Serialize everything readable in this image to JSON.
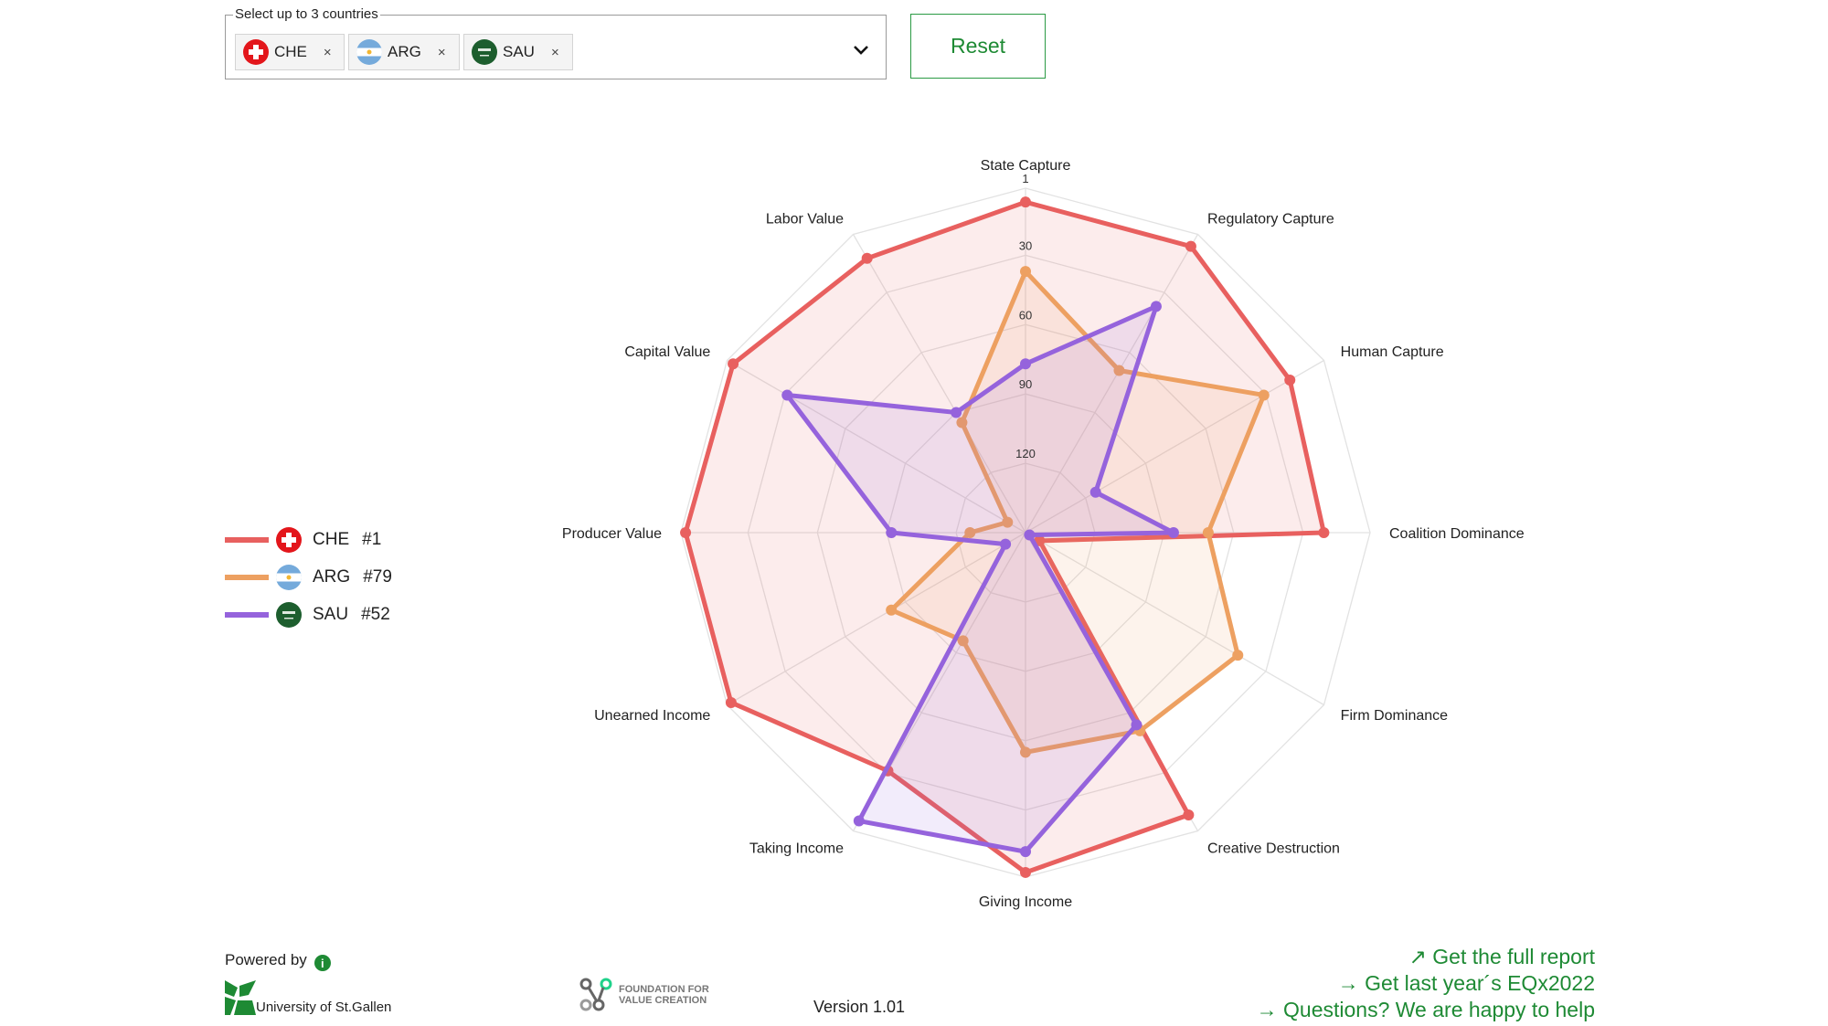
{
  "selector": {
    "label": "Select up to 3 countries",
    "chips": [
      {
        "code": "CHE",
        "flag": "switzerland-flag-icon",
        "remove": "×"
      },
      {
        "code": "ARG",
        "flag": "argentina-flag-icon",
        "remove": "×"
      },
      {
        "code": "SAU",
        "flag": "saudi-arabia-flag-icon",
        "remove": "×"
      }
    ]
  },
  "reset_label": "Reset",
  "legend": [
    {
      "code": "CHE",
      "rank": "#1",
      "color": "#e8605f"
    },
    {
      "code": "ARG",
      "rank": "#79",
      "color": "#eda061"
    },
    {
      "code": "SAU",
      "rank": "#52",
      "color": "#9563dc"
    }
  ],
  "chart_data": {
    "type": "radar",
    "axis_reversed": true,
    "range": [
      150,
      1
    ],
    "ticks": [
      "1",
      "30",
      "60",
      "90",
      "120"
    ],
    "tick_values": [
      1,
      30,
      60,
      90,
      120
    ],
    "categories": [
      "State Capture",
      "Regulatory Capture",
      "Human Capture",
      "Coalition Dominance",
      "Firm Dominance",
      "Creative Destruction",
      "Giving Income",
      "Taking Income",
      "Unearned Income",
      "Producer Value",
      "Capital Value",
      "Labor Value"
    ],
    "series": [
      {
        "name": "CHE",
        "color": "#e8605f",
        "values": [
          7,
          7,
          18,
          21,
          143,
          9,
          3,
          31,
          3,
          3,
          4,
          13
        ]
      },
      {
        "name": "ARG",
        "color": "#eda061",
        "values": [
          37,
          69,
          31,
          71,
          44,
          51,
          55,
          96,
          83,
          126,
          141,
          95
        ]
      },
      {
        "name": "SAU",
        "color": "#9563dc",
        "values": [
          77,
          37,
          115,
          86,
          148,
          54,
          12,
          6,
          140,
          92,
          31,
          90
        ]
      }
    ],
    "grid": true
  },
  "footer": {
    "powered_by": "Powered by",
    "info": "i",
    "hsg": "University of St.Gallen",
    "fvc_line1": "FOUNDATION FOR",
    "fvc_line2": "VALUE CREATION",
    "version": "Version 1.01",
    "links": [
      {
        "icon": "↗",
        "label": "Get the full report"
      },
      {
        "icon": "→",
        "label": "Get last year´s EQx2022"
      },
      {
        "icon": "→",
        "label": "Questions? We are happy to help"
      }
    ]
  }
}
